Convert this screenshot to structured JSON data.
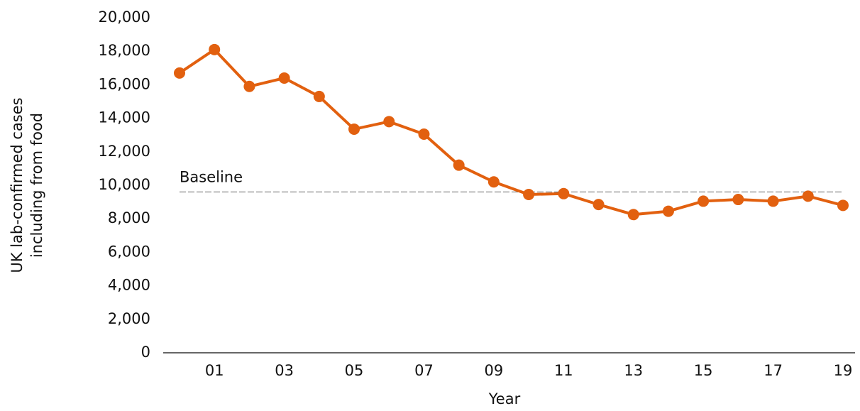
{
  "chart_data": {
    "type": "line",
    "xlabel": "Year",
    "ylabel": [
      "UK lab-confirmed cases",
      "including from food"
    ],
    "categories": [
      null,
      "01",
      null,
      "03",
      null,
      "05",
      null,
      "07",
      null,
      "09",
      null,
      "11",
      null,
      "13",
      null,
      "15",
      null,
      "17",
      null,
      "19"
    ],
    "series": [
      {
        "name": "UK lab-confirmed cases",
        "color": "#e2600f",
        "values": [
          16700,
          18100,
          15900,
          16400,
          15300,
          13350,
          13800,
          13050,
          11200,
          10200,
          9450,
          9500,
          8850,
          8250,
          8450,
          9050,
          9150,
          9050,
          9350,
          8800
        ]
      }
    ],
    "baseline": {
      "label": "Baseline",
      "value": 9600
    },
    "ylim": [
      0,
      20000
    ],
    "yticks": [
      0,
      {
        "value": 2000,
        "label": "2,000"
      },
      {
        "value": 4000,
        "label": "4,000"
      },
      {
        "value": 6000,
        "label": "6,000"
      },
      {
        "value": 8000,
        "label": "8,000"
      },
      {
        "value": 10000,
        "label": "10,000"
      },
      {
        "value": 12000,
        "label": "12,000"
      },
      {
        "value": 14000,
        "label": "14,000"
      },
      {
        "value": 16000,
        "label": "16,000"
      },
      {
        "value": 18000,
        "label": "18,000"
      },
      {
        "value": 20000,
        "label": "20,000"
      }
    ],
    "grid": false
  }
}
